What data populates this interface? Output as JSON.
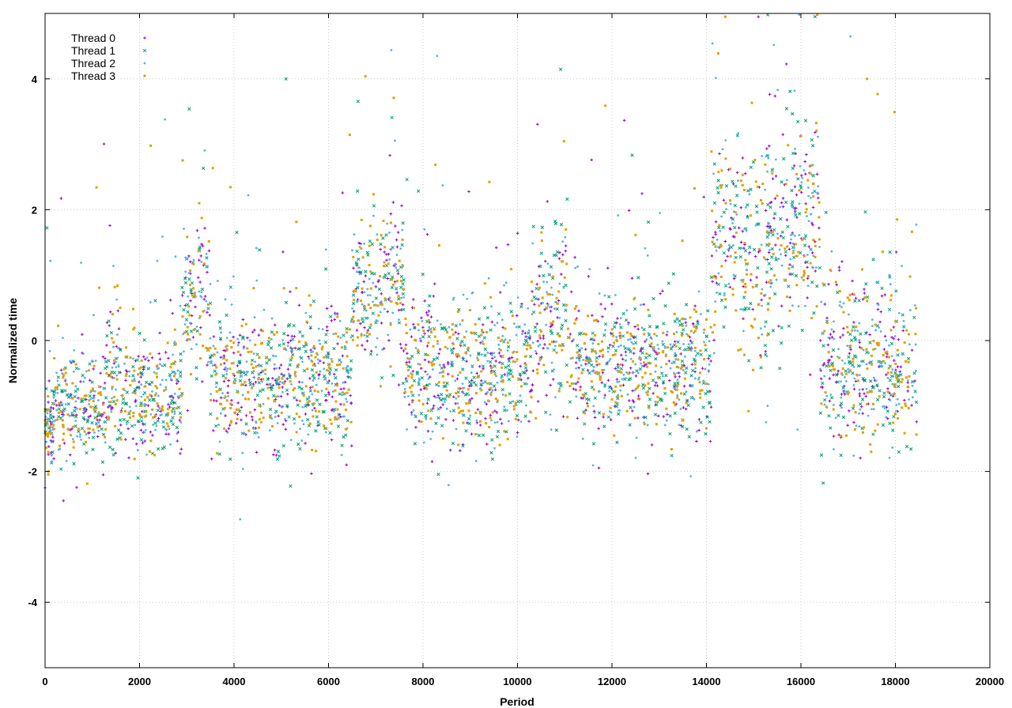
{
  "chart_data": {
    "type": "scatter",
    "title": "",
    "xlabel": "Period",
    "ylabel": "Normalized time",
    "xlim": [
      0,
      20000
    ],
    "ylim": [
      -5,
      5
    ],
    "xticks": [
      0,
      2000,
      4000,
      6000,
      8000,
      10000,
      12000,
      14000,
      16000,
      18000,
      20000
    ],
    "yticks": [
      -4,
      -2,
      0,
      2,
      4
    ],
    "grid": true,
    "legend_position": "top-left",
    "x_data_extent": [
      0,
      18450
    ],
    "series": [
      {
        "name": "Thread 0",
        "color": "#9400d3",
        "marker": "plus"
      },
      {
        "name": "Thread 1",
        "color": "#009e73",
        "marker": "cross"
      },
      {
        "name": "Thread 2",
        "color": "#56b4e9",
        "marker": "asterisk"
      },
      {
        "name": "Thread 3",
        "color": "#e69f00",
        "marker": "square"
      }
    ],
    "segments": [
      {
        "x": [
          0,
          200
        ],
        "mean": -1.3,
        "spread": 0.25
      },
      {
        "x": [
          200,
          1300
        ],
        "mean": -1.05,
        "spread": 0.4
      },
      {
        "x": [
          1300,
          1600
        ],
        "mean": -0.6,
        "spread": 0.6
      },
      {
        "x": [
          1600,
          2900
        ],
        "mean": -0.85,
        "spread": 0.45
      },
      {
        "x": [
          2900,
          3500
        ],
        "mean": 0.6,
        "spread": 0.7
      },
      {
        "x": [
          3500,
          6500
        ],
        "mean": -0.6,
        "spread": 0.55
      },
      {
        "x": [
          6500,
          7600
        ],
        "mean": 0.7,
        "spread": 0.6
      },
      {
        "x": [
          7600,
          10300
        ],
        "mean": -0.5,
        "spread": 0.55
      },
      {
        "x": [
          10300,
          11100
        ],
        "mean": 0.3,
        "spread": 0.75
      },
      {
        "x": [
          11100,
          14100
        ],
        "mean": -0.4,
        "spread": 0.5
      },
      {
        "x": [
          14100,
          16400
        ],
        "mean": 1.5,
        "spread": 0.8
      },
      {
        "x": [
          16400,
          18450
        ],
        "mean": -0.4,
        "spread": 0.6
      }
    ],
    "notable_points": [
      {
        "x": 0,
        "y": -2.25
      },
      {
        "x": 5100,
        "y": 4.0
      },
      {
        "x": 8300,
        "y": 4.35
      },
      {
        "x": 14400,
        "y": 4.95
      },
      {
        "x": 15100,
        "y": 4.95
      },
      {
        "x": 16300,
        "y": 4.95
      },
      {
        "x": 17050,
        "y": 4.65
      },
      {
        "x": 17400,
        "y": 4.0
      }
    ]
  }
}
